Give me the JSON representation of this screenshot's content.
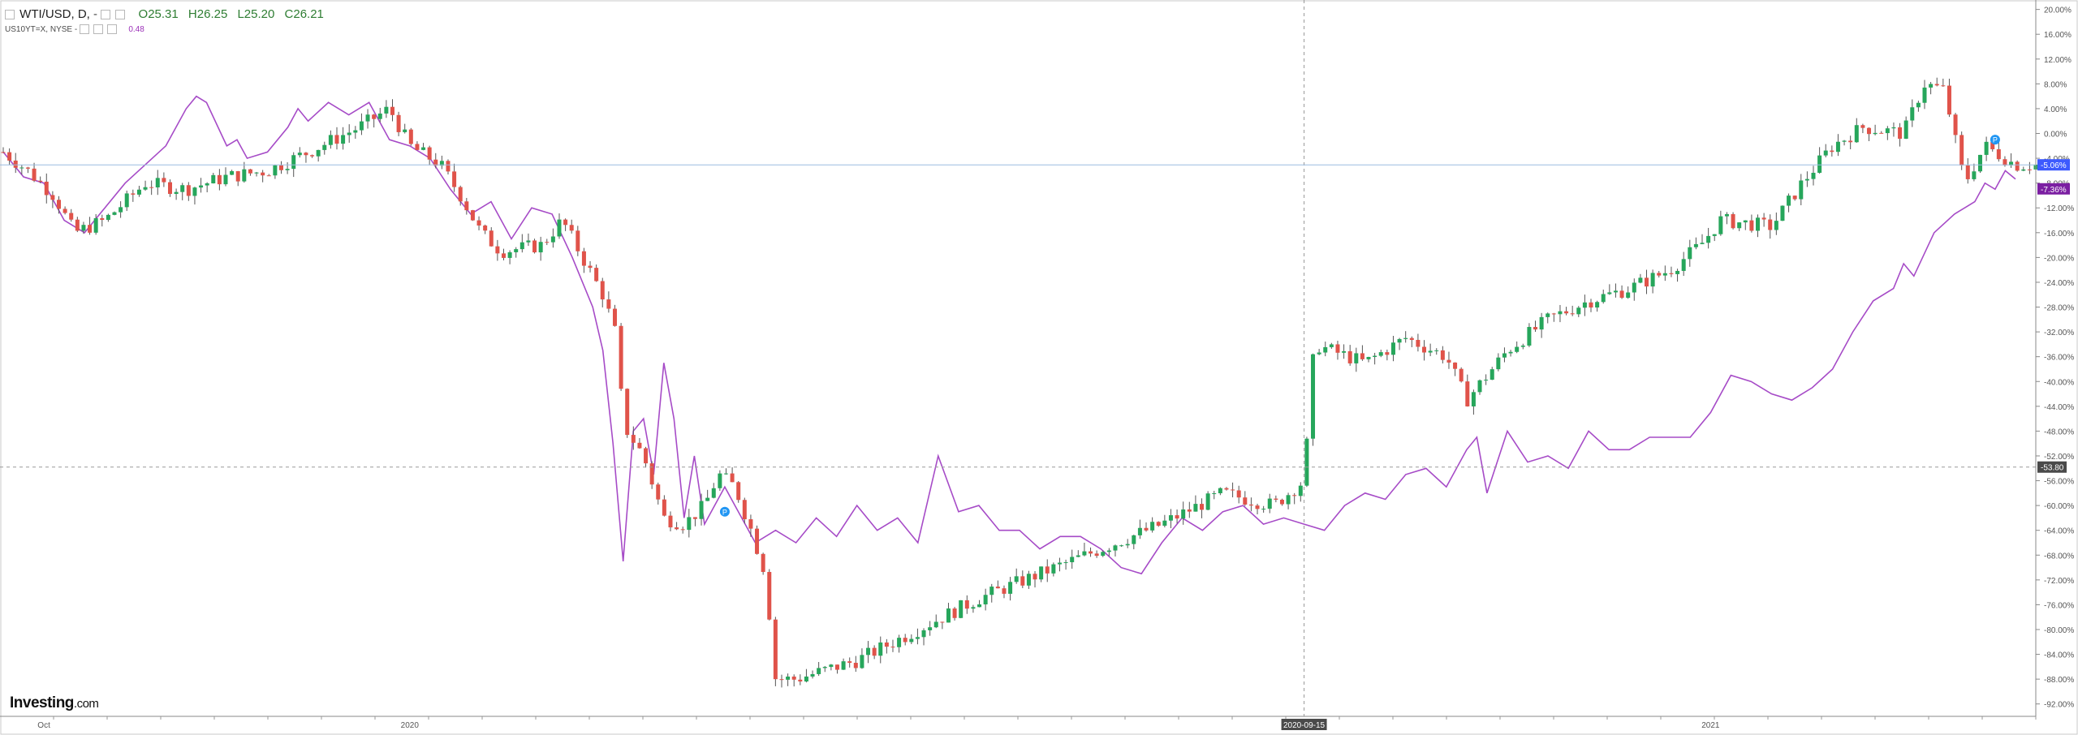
{
  "header": {
    "symbol": "WTI/USD, D,",
    "dash": "-",
    "open": "O25.31",
    "high": "H26.25",
    "low": "L25.20",
    "close": "C26.21",
    "overlay_symbol": "US10YT=X, NYSE",
    "overlay_dash": "-",
    "overlay_value": "0.48"
  },
  "logo": {
    "brand": "Investing",
    "suffix": ".com"
  },
  "colors": {
    "up": "#26a65b",
    "down": "#e0534a",
    "overlay": "#a64bc7",
    "badge_price": "#3d5afe",
    "badge_overlay": "#7b1fa2",
    "crosshair_label": "#4a4a4a"
  },
  "chart_data": {
    "type": "candlestick",
    "y_scale": "percent",
    "ylim": [
      -94,
      21
    ],
    "y_ticks": [
      "20.00%",
      "16.00%",
      "12.00%",
      "8.00%",
      "4.00%",
      "0.00%",
      "-4.00%",
      "-8.00%",
      "-12.00%",
      "-16.00%",
      "-20.00%",
      "-24.00%",
      "-28.00%",
      "-32.00%",
      "-36.00%",
      "-40.00%",
      "-44.00%",
      "-48.00%",
      "-52.00%",
      "-56.00%",
      "-60.00%",
      "-64.00%",
      "-68.00%",
      "-72.00%",
      "-76.00%",
      "-80.00%",
      "-84.00%",
      "-88.00%",
      "-92.00%"
    ],
    "x_labels": [
      {
        "label": "Oct",
        "at": 0.02
      },
      {
        "label": "2020",
        "at": 0.2
      },
      {
        "label": "2021",
        "at": 0.84
      }
    ],
    "crosshair": {
      "x_label": "2020-09-15",
      "at": 0.64,
      "y": -53.8,
      "y_label": "-53.80"
    },
    "price_badge": {
      "label": "-5.06%",
      "value": -5.06
    },
    "overlay_badge": {
      "label": "-7.36%",
      "value": -7.36
    },
    "candles_waypoints": [
      [
        0,
        -3
      ],
      [
        0.012,
        -6
      ],
      [
        0.025,
        -10
      ],
      [
        0.035,
        -16
      ],
      [
        0.05,
        -14
      ],
      [
        0.07,
        -8
      ],
      [
        0.09,
        -9
      ],
      [
        0.11,
        -7
      ],
      [
        0.13,
        -6
      ],
      [
        0.15,
        -3
      ],
      [
        0.175,
        1
      ],
      [
        0.19,
        4
      ],
      [
        0.2,
        -2
      ],
      [
        0.215,
        -5
      ],
      [
        0.225,
        -10
      ],
      [
        0.235,
        -16
      ],
      [
        0.245,
        -19
      ],
      [
        0.265,
        -18
      ],
      [
        0.275,
        -14
      ],
      [
        0.285,
        -20
      ],
      [
        0.295,
        -26
      ],
      [
        0.302,
        -33
      ],
      [
        0.305,
        -47
      ],
      [
        0.315,
        -52
      ],
      [
        0.325,
        -62
      ],
      [
        0.335,
        -63
      ],
      [
        0.345,
        -60
      ],
      [
        0.352,
        -55
      ],
      [
        0.36,
        -57
      ],
      [
        0.368,
        -64
      ],
      [
        0.375,
        -71
      ],
      [
        0.38,
        -88
      ],
      [
        0.39,
        -88
      ],
      [
        0.4,
        -87
      ],
      [
        0.42,
        -85
      ],
      [
        0.45,
        -80
      ],
      [
        0.48,
        -75
      ],
      [
        0.51,
        -71
      ],
      [
        0.54,
        -67
      ],
      [
        0.57,
        -63
      ],
      [
        0.6,
        -58
      ],
      [
        0.625,
        -60
      ],
      [
        0.64,
        -56
      ],
      [
        0.645,
        -34
      ],
      [
        0.67,
        -37
      ],
      [
        0.69,
        -33
      ],
      [
        0.71,
        -36
      ],
      [
        0.72,
        -43
      ],
      [
        0.74,
        -35
      ],
      [
        0.76,
        -30
      ],
      [
        0.78,
        -27
      ],
      [
        0.8,
        -25
      ],
      [
        0.82,
        -22
      ],
      [
        0.835,
        -18
      ],
      [
        0.845,
        -14
      ],
      [
        0.87,
        -15
      ],
      [
        0.885,
        -8
      ],
      [
        0.9,
        -2
      ],
      [
        0.915,
        1
      ],
      [
        0.935,
        0
      ],
      [
        0.945,
        8
      ],
      [
        0.955,
        7
      ],
      [
        0.965,
        -8
      ],
      [
        0.975,
        -2
      ],
      [
        0.99,
        -5.06
      ]
    ],
    "overlay_waypoints": [
      [
        0,
        -3
      ],
      [
        0.01,
        -7
      ],
      [
        0.02,
        -8
      ],
      [
        0.03,
        -14
      ],
      [
        0.04,
        -16
      ],
      [
        0.05,
        -12
      ],
      [
        0.06,
        -8
      ],
      [
        0.07,
        -5
      ],
      [
        0.08,
        -2
      ],
      [
        0.09,
        4
      ],
      [
        0.095,
        6
      ],
      [
        0.1,
        5
      ],
      [
        0.11,
        -2
      ],
      [
        0.115,
        -1
      ],
      [
        0.12,
        -4
      ],
      [
        0.13,
        -3
      ],
      [
        0.14,
        1
      ],
      [
        0.145,
        4
      ],
      [
        0.15,
        2
      ],
      [
        0.16,
        5
      ],
      [
        0.17,
        3
      ],
      [
        0.18,
        5
      ],
      [
        0.19,
        -1
      ],
      [
        0.2,
        -2
      ],
      [
        0.21,
        -4
      ],
      [
        0.22,
        -9
      ],
      [
        0.23,
        -13
      ],
      [
        0.24,
        -11
      ],
      [
        0.25,
        -17
      ],
      [
        0.26,
        -12
      ],
      [
        0.27,
        -13
      ],
      [
        0.28,
        -20
      ],
      [
        0.29,
        -28
      ],
      [
        0.295,
        -35
      ],
      [
        0.3,
        -50
      ],
      [
        0.305,
        -69
      ],
      [
        0.31,
        -48
      ],
      [
        0.315,
        -46
      ],
      [
        0.32,
        -55
      ],
      [
        0.325,
        -37
      ],
      [
        0.33,
        -46
      ],
      [
        0.335,
        -62
      ],
      [
        0.34,
        -52
      ],
      [
        0.345,
        -63
      ],
      [
        0.35,
        -60
      ],
      [
        0.355,
        -57
      ],
      [
        0.36,
        -60
      ],
      [
        0.37,
        -66
      ],
      [
        0.38,
        -64
      ],
      [
        0.39,
        -66
      ],
      [
        0.4,
        -62
      ],
      [
        0.41,
        -65
      ],
      [
        0.42,
        -60
      ],
      [
        0.43,
        -64
      ],
      [
        0.44,
        -62
      ],
      [
        0.45,
        -66
      ],
      [
        0.46,
        -52
      ],
      [
        0.47,
        -61
      ],
      [
        0.48,
        -60
      ],
      [
        0.49,
        -64
      ],
      [
        0.5,
        -64
      ],
      [
        0.51,
        -67
      ],
      [
        0.52,
        -65
      ],
      [
        0.53,
        -65
      ],
      [
        0.54,
        -67
      ],
      [
        0.55,
        -70
      ],
      [
        0.56,
        -71
      ],
      [
        0.57,
        -66
      ],
      [
        0.58,
        -62
      ],
      [
        0.59,
        -64
      ],
      [
        0.6,
        -61
      ],
      [
        0.61,
        -60
      ],
      [
        0.62,
        -63
      ],
      [
        0.63,
        -62
      ],
      [
        0.64,
        -63
      ],
      [
        0.65,
        -64
      ],
      [
        0.66,
        -60
      ],
      [
        0.67,
        -58
      ],
      [
        0.68,
        -59
      ],
      [
        0.69,
        -55
      ],
      [
        0.7,
        -54
      ],
      [
        0.71,
        -57
      ],
      [
        0.72,
        -51
      ],
      [
        0.725,
        -49
      ],
      [
        0.73,
        -58
      ],
      [
        0.74,
        -48
      ],
      [
        0.75,
        -53
      ],
      [
        0.76,
        -52
      ],
      [
        0.77,
        -54
      ],
      [
        0.78,
        -48
      ],
      [
        0.79,
        -51
      ],
      [
        0.8,
        -51
      ],
      [
        0.81,
        -49
      ],
      [
        0.82,
        -49
      ],
      [
        0.83,
        -49
      ],
      [
        0.84,
        -45
      ],
      [
        0.85,
        -39
      ],
      [
        0.86,
        -40
      ],
      [
        0.87,
        -42
      ],
      [
        0.88,
        -43
      ],
      [
        0.89,
        -41
      ],
      [
        0.9,
        -38
      ],
      [
        0.91,
        -32
      ],
      [
        0.92,
        -27
      ],
      [
        0.93,
        -25
      ],
      [
        0.935,
        -21
      ],
      [
        0.94,
        -23
      ],
      [
        0.95,
        -16
      ],
      [
        0.96,
        -13
      ],
      [
        0.97,
        -11
      ],
      [
        0.975,
        -8
      ],
      [
        0.98,
        -9
      ],
      [
        0.985,
        -6
      ],
      [
        0.99,
        -7.36
      ]
    ]
  }
}
